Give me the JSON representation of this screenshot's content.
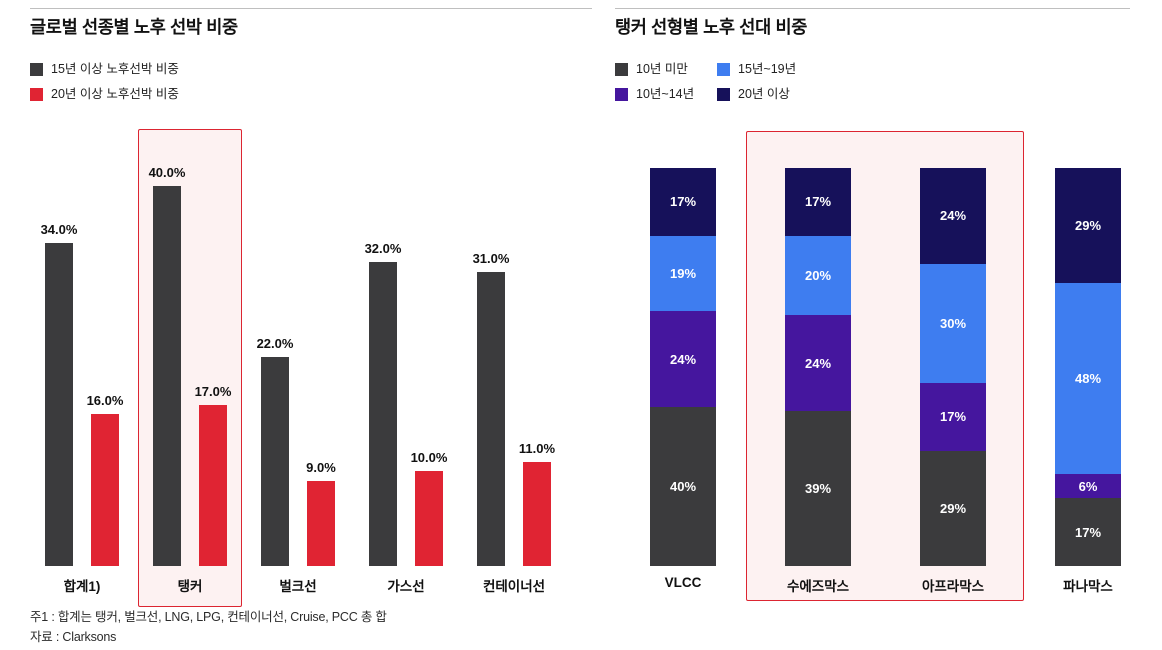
{
  "page": {
    "background": "#ffffff"
  },
  "left_chart": {
    "title": "글로벌 선종별 노후 선박 비중",
    "legend": [
      {
        "label": "15년 이상 노후선박 비중",
        "color": "#3b3b3d"
      },
      {
        "label": "20년 이상 노후선박 비중",
        "color": "#e02433"
      }
    ],
    "chart_data": {
      "type": "bar",
      "categories": [
        "합계1)",
        "탱커",
        "벌크선",
        "가스선",
        "컨테이너선"
      ],
      "series": [
        {
          "name": "15년 이상 노후선박 비중",
          "color": "#3b3b3d",
          "values": [
            34.0,
            40.0,
            22.0,
            32.0,
            31.0
          ]
        },
        {
          "name": "20년 이상 노후선박 비중",
          "color": "#e02433",
          "values": [
            16.0,
            17.0,
            9.0,
            10.0,
            11.0
          ]
        }
      ],
      "value_suffix": "%",
      "ylim": [
        0,
        42
      ],
      "grid": false,
      "legend_position": "top-left",
      "highlighted_category": "탱커"
    },
    "footnotes": [
      "주1 : 합계는 탱커, 벌크선, LNG, LPG, 컨테이너선, Cruise, PCC 총 합",
      "자료 : Clarksons"
    ],
    "highlight_color": "#dc2531"
  },
  "right_chart": {
    "title": "탱커 선형별 노후 선대 비중",
    "legend": [
      {
        "label": "10년 미만",
        "color": "#3b3b3d"
      },
      {
        "label": "15년~19년",
        "color": "#3e7df0"
      },
      {
        "label": "10년~14년",
        "color": "#45169e"
      },
      {
        "label": "20년 이상",
        "color": "#16115a"
      }
    ],
    "chart_data": {
      "type": "stacked-bar",
      "categories": [
        "VLCC",
        "수에즈막스",
        "아프라막스",
        "파나막스"
      ],
      "series": [
        {
          "name": "10년 미만",
          "color": "#3b3b3d",
          "values": [
            40,
            39,
            29,
            17
          ]
        },
        {
          "name": "10년~14년",
          "color": "#45169e",
          "values": [
            24,
            24,
            17,
            6
          ]
        },
        {
          "name": "15년~19년",
          "color": "#3e7df0",
          "values": [
            19,
            20,
            30,
            48
          ]
        },
        {
          "name": "20년 이상",
          "color": "#16115a",
          "values": [
            17,
            17,
            24,
            29
          ]
        }
      ],
      "value_suffix": "%",
      "stack_total": 100,
      "grid": false,
      "legend_position": "top-left",
      "highlighted_categories": [
        "수에즈막스",
        "아프라막스"
      ]
    },
    "highlight_color": "#dc2531"
  }
}
